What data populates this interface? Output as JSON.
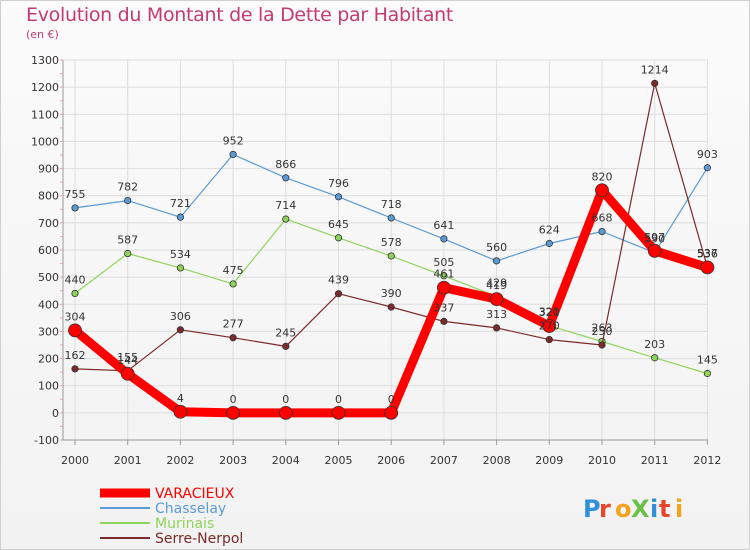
{
  "title": "Evolution du Montant de la Dette par Habitant",
  "subtitle": "(en €)",
  "logo": "ProXiti",
  "colors": {
    "title": "#c43a72",
    "VARACIEUX": "#ff0000",
    "Chasselay": "#5b9bd5",
    "Murinais": "#8fd45a",
    "Serre-Nerpol": "#7b2a2a"
  },
  "chart_data": {
    "type": "line",
    "title": "Evolution du Montant de la Dette par Habitant",
    "ylabel": "(en €)",
    "x": [
      2000,
      2001,
      2002,
      2003,
      2004,
      2005,
      2006,
      2007,
      2008,
      2009,
      2010,
      2011,
      2012
    ],
    "ylim": [
      -100,
      1300
    ],
    "yticks": [
      -100,
      0,
      100,
      200,
      300,
      400,
      500,
      600,
      700,
      800,
      900,
      1000,
      1100,
      1200,
      1300
    ],
    "grid": true,
    "legend": "bottom-left",
    "series": [
      {
        "name": "VARACIEUX",
        "values": [
          304,
          144,
          4,
          0,
          0,
          0,
          0,
          461,
          419,
          320,
          820,
          597,
          536
        ],
        "labels": [
          "304",
          "144",
          "4",
          "0",
          "0",
          "0",
          "0",
          "461",
          "419",
          "320",
          "820",
          "597",
          "536"
        ]
      },
      {
        "name": "Chasselay",
        "values": [
          755,
          782,
          721,
          952,
          866,
          796,
          718,
          641,
          560,
          624,
          668,
          590,
          903
        ],
        "labels": [
          "755",
          "782",
          "721",
          "952",
          "866",
          "796",
          "718",
          "641",
          "560",
          "624",
          "668",
          "590",
          "903"
        ]
      },
      {
        "name": "Murinais",
        "values": [
          440,
          587,
          534,
          475,
          714,
          645,
          578,
          505,
          429,
          321,
          263,
          203,
          145
        ],
        "labels": [
          "440",
          "587",
          "534",
          "475",
          "714",
          "645",
          "578",
          "505",
          "429",
          "321",
          "263",
          "203",
          "145"
        ]
      },
      {
        "name": "Serre-Nerpol",
        "values": [
          162,
          155,
          306,
          277,
          245,
          439,
          390,
          337,
          313,
          270,
          250,
          1214,
          537
        ],
        "labels": [
          "162",
          "155",
          "306",
          "277",
          "245",
          "439",
          "390",
          "337",
          "313",
          "270",
          "250",
          "1214",
          "537"
        ]
      }
    ]
  }
}
